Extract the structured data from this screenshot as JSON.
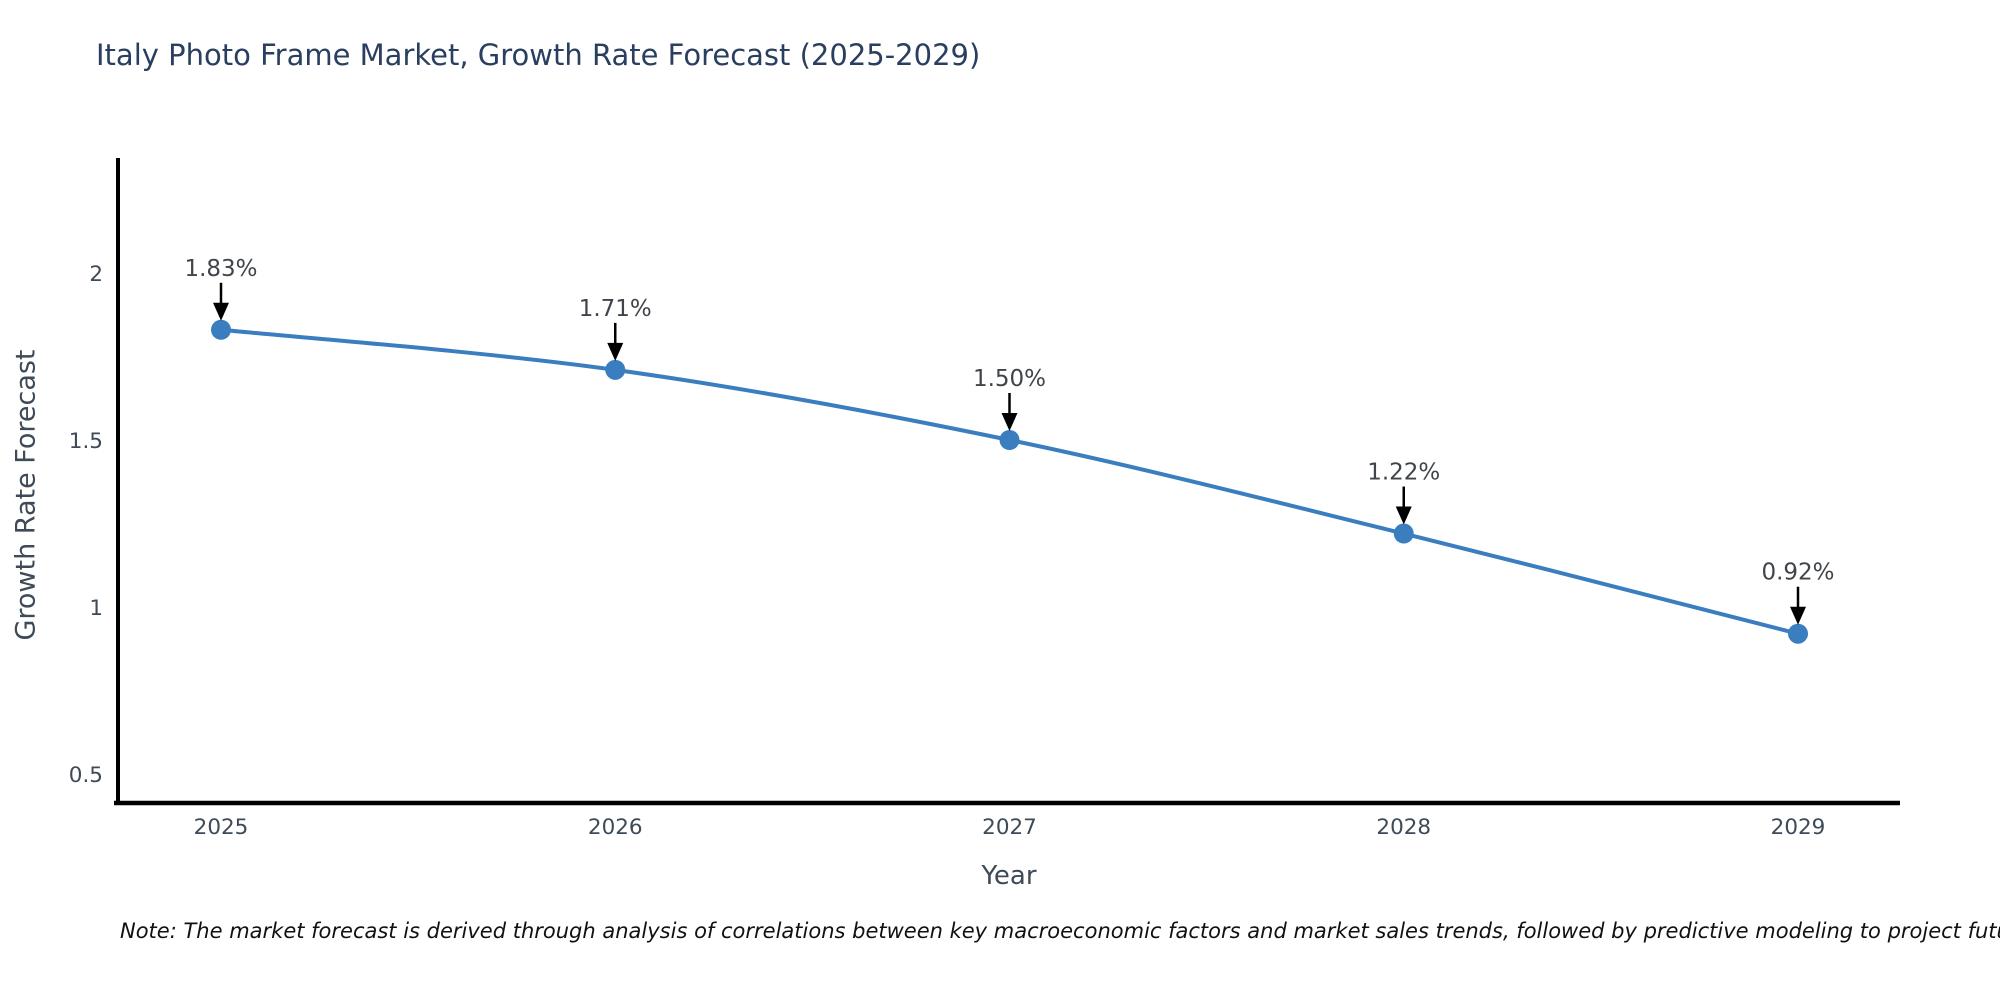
{
  "title": "Italy Photo Frame Market, Growth Rate Forecast (2025-2029)",
  "note": "Note: The market forecast is derived through analysis of correlations between key macroeconomic factors and market sales trends, followed by predictive modeling to project future sales",
  "chart_data": {
    "type": "line",
    "title": "Italy Photo Frame Market, Growth Rate Forecast (2025-2029)",
    "xlabel": "Year",
    "ylabel": "Growth Rate Forecast",
    "x": [
      2025,
      2026,
      2027,
      2028,
      2029
    ],
    "xtick_labels": [
      "2025",
      "2026",
      "2027",
      "2028",
      "2029"
    ],
    "values": [
      1.83,
      1.71,
      1.5,
      1.22,
      0.92
    ],
    "point_labels": [
      "1.83%",
      "1.71%",
      "1.50%",
      "1.22%",
      "0.92%"
    ],
    "yticks": [
      0.5,
      1,
      1.5,
      2
    ],
    "ytick_labels": [
      "0.5",
      "1",
      "1.5",
      "2"
    ],
    "ylim": [
      0.42,
      2.34
    ],
    "xlim": [
      2024.74,
      2029.26
    ],
    "grid": false,
    "legend_position": "none",
    "annotations_have_arrows": true,
    "colors": {
      "line": "#3b7ebf",
      "marker": "#3b7ebf",
      "axis": "#000000",
      "title": "#2a3f5f",
      "tick_label": "#3e4a57",
      "annotation_text": "#40454b",
      "annotation_arrow": "#000000"
    }
  }
}
